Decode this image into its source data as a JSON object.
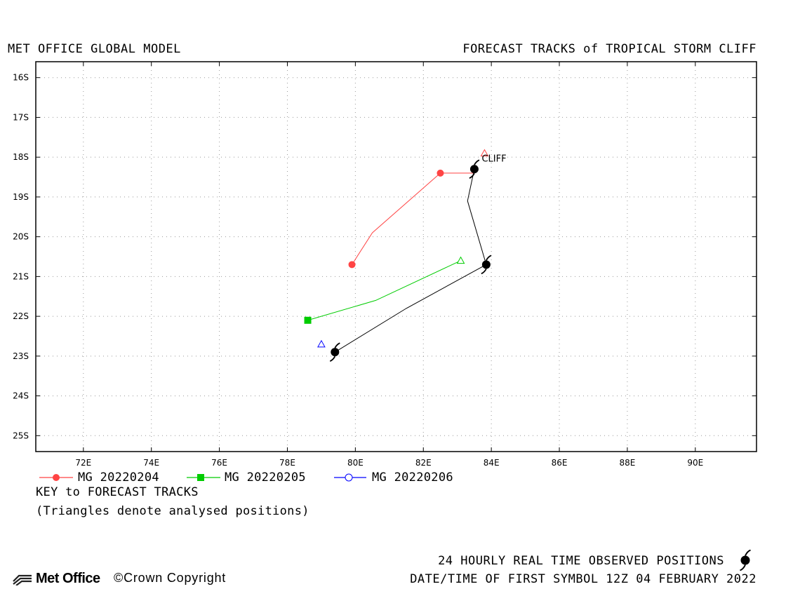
{
  "header": {
    "left": "MET OFFICE GLOBAL MODEL",
    "right": "FORECAST TRACKS of TROPICAL STORM CLIFF"
  },
  "map": {
    "lon_range": [
      70.6,
      91.8
    ],
    "lat_range": [
      -25.4,
      -15.6
    ],
    "lon_ticks": [
      72,
      74,
      76,
      78,
      80,
      82,
      84,
      86,
      88,
      90
    ],
    "lon_tick_labels": [
      "72E",
      "74E",
      "76E",
      "78E",
      "80E",
      "82E",
      "84E",
      "86E",
      "88E",
      "90E"
    ],
    "lat_ticks": [
      -16,
      -17,
      -18,
      -19,
      -20,
      -21,
      -22,
      -23,
      -24,
      -25
    ],
    "lat_tick_labels": [
      "16S",
      "17S",
      "18S",
      "19S",
      "20S",
      "21S",
      "22S",
      "23S",
      "24S",
      "25S"
    ],
    "grid": "dotted",
    "storm_label": "CLIFF"
  },
  "chart_data": {
    "type": "track-map",
    "observed_track": {
      "color": "#000000",
      "points": [
        [
          83.5,
          -18.3
        ],
        [
          83.3,
          -19.1
        ],
        [
          83.85,
          -20.7
        ],
        [
          81.5,
          -21.8
        ],
        [
          79.4,
          -22.9
        ]
      ],
      "symbols": [
        [
          83.5,
          -18.3
        ],
        [
          83.85,
          -20.7
        ],
        [
          79.4,
          -22.9
        ]
      ]
    },
    "forecast_tracks": [
      {
        "name": "MG 20220204",
        "color": "#ff4444",
        "marker": "circle",
        "analysed": [
          83.8,
          -17.9
        ],
        "points": [
          [
            83.5,
            -18.4
          ],
          [
            82.5,
            -18.4
          ],
          [
            80.5,
            -19.9
          ],
          [
            79.9,
            -20.7
          ]
        ],
        "markers": [
          [
            82.5,
            -18.4
          ],
          [
            79.9,
            -20.7
          ]
        ]
      },
      {
        "name": "MG 20220205",
        "color": "#00cc00",
        "marker": "square",
        "analysed": [
          83.1,
          -20.6
        ],
        "points": [
          [
            83.1,
            -20.6
          ],
          [
            80.6,
            -21.6
          ],
          [
            78.6,
            -22.1
          ]
        ],
        "markers": [
          [
            78.6,
            -22.1
          ]
        ]
      },
      {
        "name": "MG 20220206",
        "color": "#0000ff",
        "marker": "circle-open",
        "analysed": [
          79.0,
          -22.7
        ],
        "points": [],
        "markers": []
      }
    ]
  },
  "legend": {
    "title": "KEY to FORECAST TRACKS",
    "note": "(Triangles denote analysed positions)",
    "items": [
      {
        "label": "MG 20220204",
        "color": "#ff4444",
        "marker": "circle"
      },
      {
        "label": "MG 20220205",
        "color": "#00cc00",
        "marker": "square"
      },
      {
        "label": "MG 20220206",
        "color": "#0000ff",
        "marker": "circle-open"
      }
    ]
  },
  "footer": {
    "observed": "24 HOURLY REAL TIME OBSERVED POSITIONS",
    "datetime": "DATE/TIME OF FIRST SYMBOL 12Z 04 FEBRUARY 2022",
    "logo": "Met Office",
    "copyright": "©Crown Copyright"
  }
}
